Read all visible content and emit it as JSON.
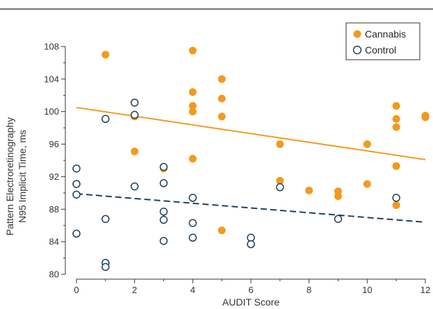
{
  "colors": {
    "cannabis": "#F29A1E",
    "control_stroke": "#1F3F58",
    "control_fill": "#FFFFFF",
    "axis": "#333333",
    "rule": "#222222"
  },
  "chart_data": {
    "type": "scatter",
    "title": "",
    "xlabel": "AUDIT Score",
    "ylabel_lines": [
      "Pattern Electroretinography",
      "N95 Implicit Time, ms"
    ],
    "xlim": [
      0,
      12
    ],
    "ylim": [
      80,
      108
    ],
    "x_ticks": [
      0,
      2,
      4,
      6,
      8,
      10,
      12
    ],
    "y_ticks": [
      80,
      84,
      88,
      92,
      96,
      100,
      104,
      108
    ],
    "x_tick_labels": [
      "0",
      "2",
      "4",
      "6",
      "8",
      "10",
      "12"
    ],
    "y_tick_labels": [
      "80",
      "84",
      "88",
      "92",
      "96",
      "100",
      "104",
      "108"
    ],
    "grid": false,
    "legend_position": "top-right",
    "legend_items": [
      "Cannabis",
      "Control"
    ],
    "series": [
      {
        "name": "Cannabis",
        "marker": "filled-circle",
        "points": [
          [
            1,
            107.0
          ],
          [
            2,
            99.4
          ],
          [
            2,
            95.1
          ],
          [
            3,
            93.0
          ],
          [
            4,
            107.5
          ],
          [
            4,
            102.4
          ],
          [
            4,
            100.7
          ],
          [
            4,
            100.0
          ],
          [
            4,
            94.2
          ],
          [
            5,
            104.0
          ],
          [
            5,
            101.6
          ],
          [
            5,
            99.4
          ],
          [
            5,
            85.4
          ],
          [
            7,
            96.0
          ],
          [
            7,
            91.5
          ],
          [
            8,
            90.3
          ],
          [
            9,
            90.2
          ],
          [
            9,
            89.6
          ],
          [
            10,
            96.0
          ],
          [
            10,
            91.1
          ],
          [
            11,
            100.7
          ],
          [
            11,
            99.1
          ],
          [
            11,
            98.1
          ],
          [
            11,
            93.3
          ],
          [
            11,
            88.5
          ],
          [
            12,
            99.5
          ],
          [
            12,
            99.3
          ]
        ],
        "trend_line": {
          "style": "solid",
          "x": [
            0,
            12
          ],
          "y": [
            100.5,
            94.1
          ]
        }
      },
      {
        "name": "Control",
        "marker": "open-circle",
        "points": [
          [
            0,
            93.0
          ],
          [
            0,
            91.1
          ],
          [
            0,
            89.8
          ],
          [
            0,
            85.0
          ],
          [
            1,
            99.1
          ],
          [
            1,
            86.8
          ],
          [
            1,
            81.4
          ],
          [
            1,
            80.9
          ],
          [
            2,
            101.1
          ],
          [
            2,
            99.6
          ],
          [
            2,
            90.8
          ],
          [
            3,
            93.2
          ],
          [
            3,
            91.2
          ],
          [
            3,
            87.7
          ],
          [
            3,
            86.7
          ],
          [
            3,
            84.1
          ],
          [
            4,
            89.4
          ],
          [
            4,
            86.3
          ],
          [
            4,
            84.5
          ],
          [
            6,
            84.5
          ],
          [
            6,
            83.7
          ],
          [
            7,
            90.7
          ],
          [
            9,
            86.8
          ],
          [
            11,
            89.4
          ]
        ],
        "trend_line": {
          "style": "dashed",
          "x": [
            0,
            12
          ],
          "y": [
            89.9,
            86.4
          ]
        }
      }
    ]
  }
}
